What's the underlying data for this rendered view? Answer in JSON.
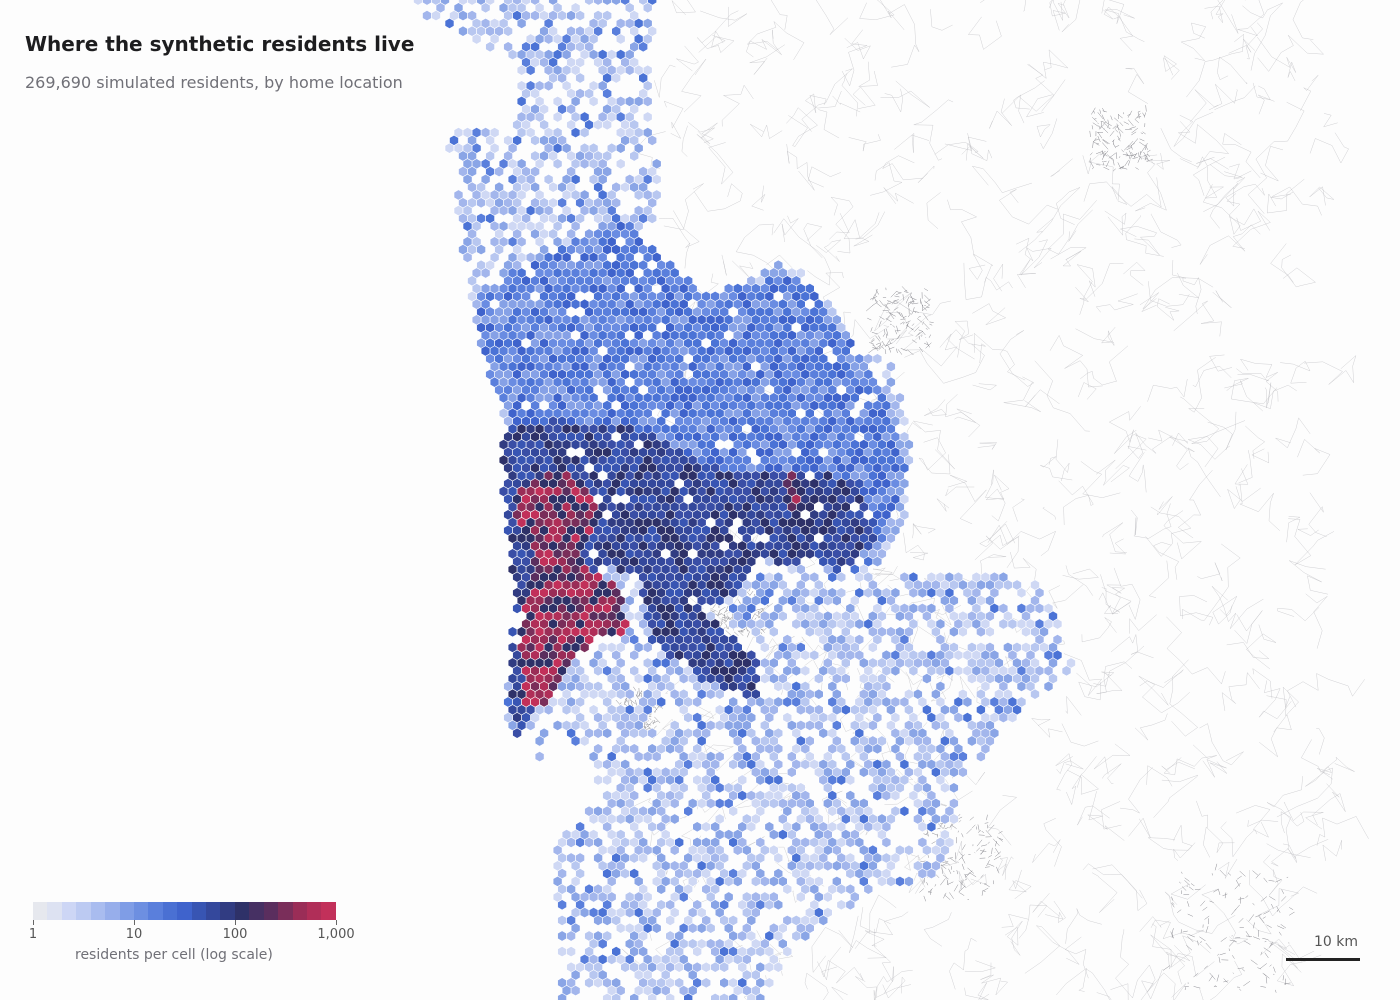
{
  "title": "Where the synthetic residents live",
  "subtitle": "269,690 simulated residents, by home location",
  "legend": {
    "caption": "residents per cell (log scale)",
    "ticks": [
      {
        "value": 1,
        "label": "1"
      },
      {
        "value": 10,
        "label": "10"
      },
      {
        "value": 100,
        "label": "100"
      },
      {
        "value": 1000,
        "label": "1,000"
      }
    ],
    "domain": [
      1,
      1000
    ],
    "scale": "log",
    "colors": [
      "#e6e8ee",
      "#cdd6f5",
      "#a9bcef",
      "#7f9de6",
      "#5a7fdc",
      "#3f63cc",
      "#34489c",
      "#2e3168",
      "#5a2e5e",
      "#9a2d57",
      "#c2305a"
    ]
  },
  "scale_bar": {
    "label": "10 km"
  },
  "map": {
    "type": "hexbin",
    "total_residents": 269690,
    "background_roads_color": "#b9b9bd",
    "hex_stroke_color": "#ffffff"
  }
}
